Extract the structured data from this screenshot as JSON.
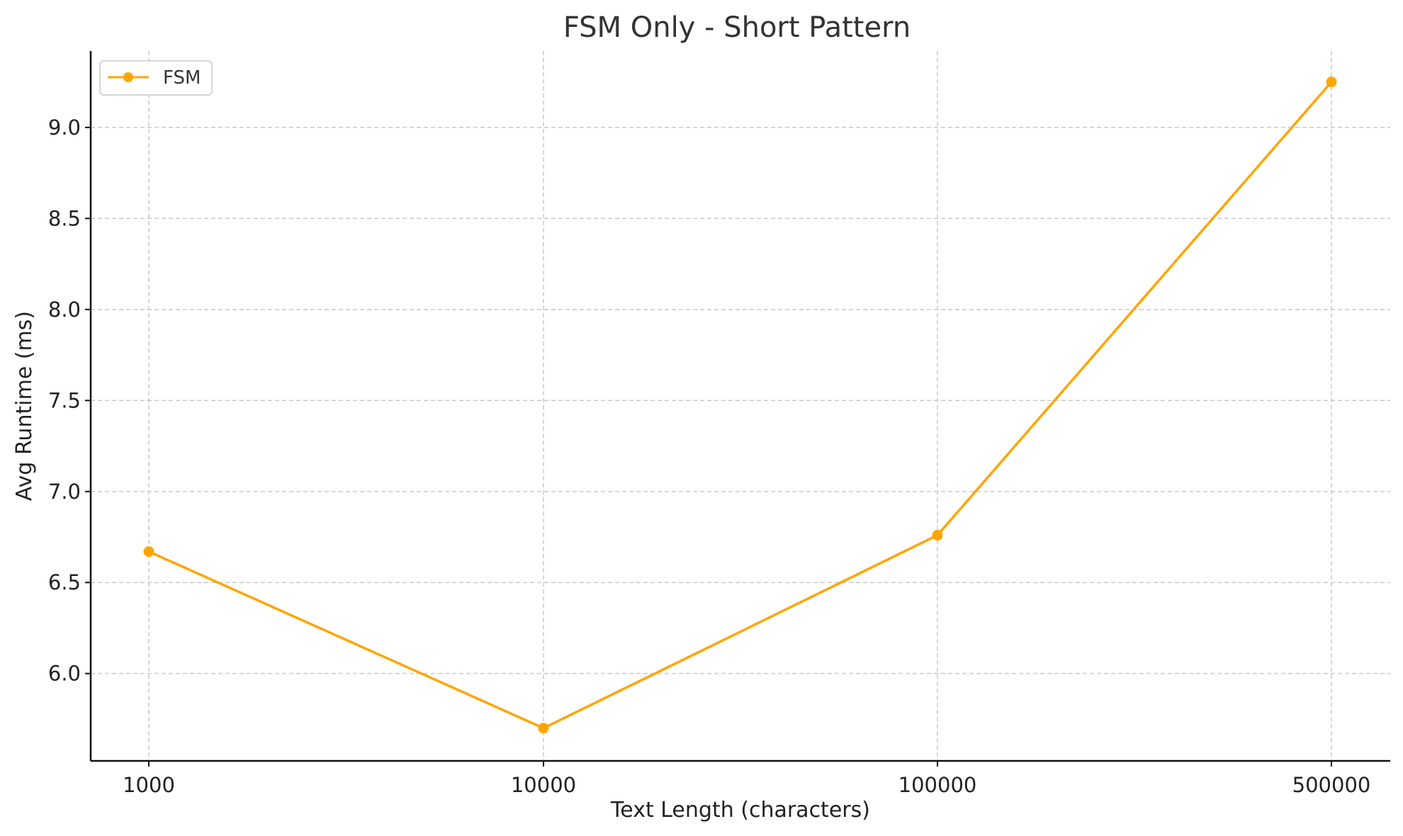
{
  "chart_data": {
    "type": "line",
    "title": "FSM Only - Short Pattern",
    "xlabel": "Text Length (characters)",
    "ylabel": "Avg Runtime (ms)",
    "categories": [
      "1000",
      "10000",
      "100000",
      "500000"
    ],
    "series": [
      {
        "name": "FSM",
        "color": "#FFA500",
        "values": [
          6.67,
          5.7,
          6.76,
          9.25
        ]
      }
    ],
    "y_ticks": [
      "6.0",
      "6.5",
      "7.0",
      "7.5",
      "8.0",
      "8.5",
      "9.0"
    ],
    "ylim": [
      5.52,
      9.42
    ],
    "grid": true,
    "legend": "top-left"
  }
}
